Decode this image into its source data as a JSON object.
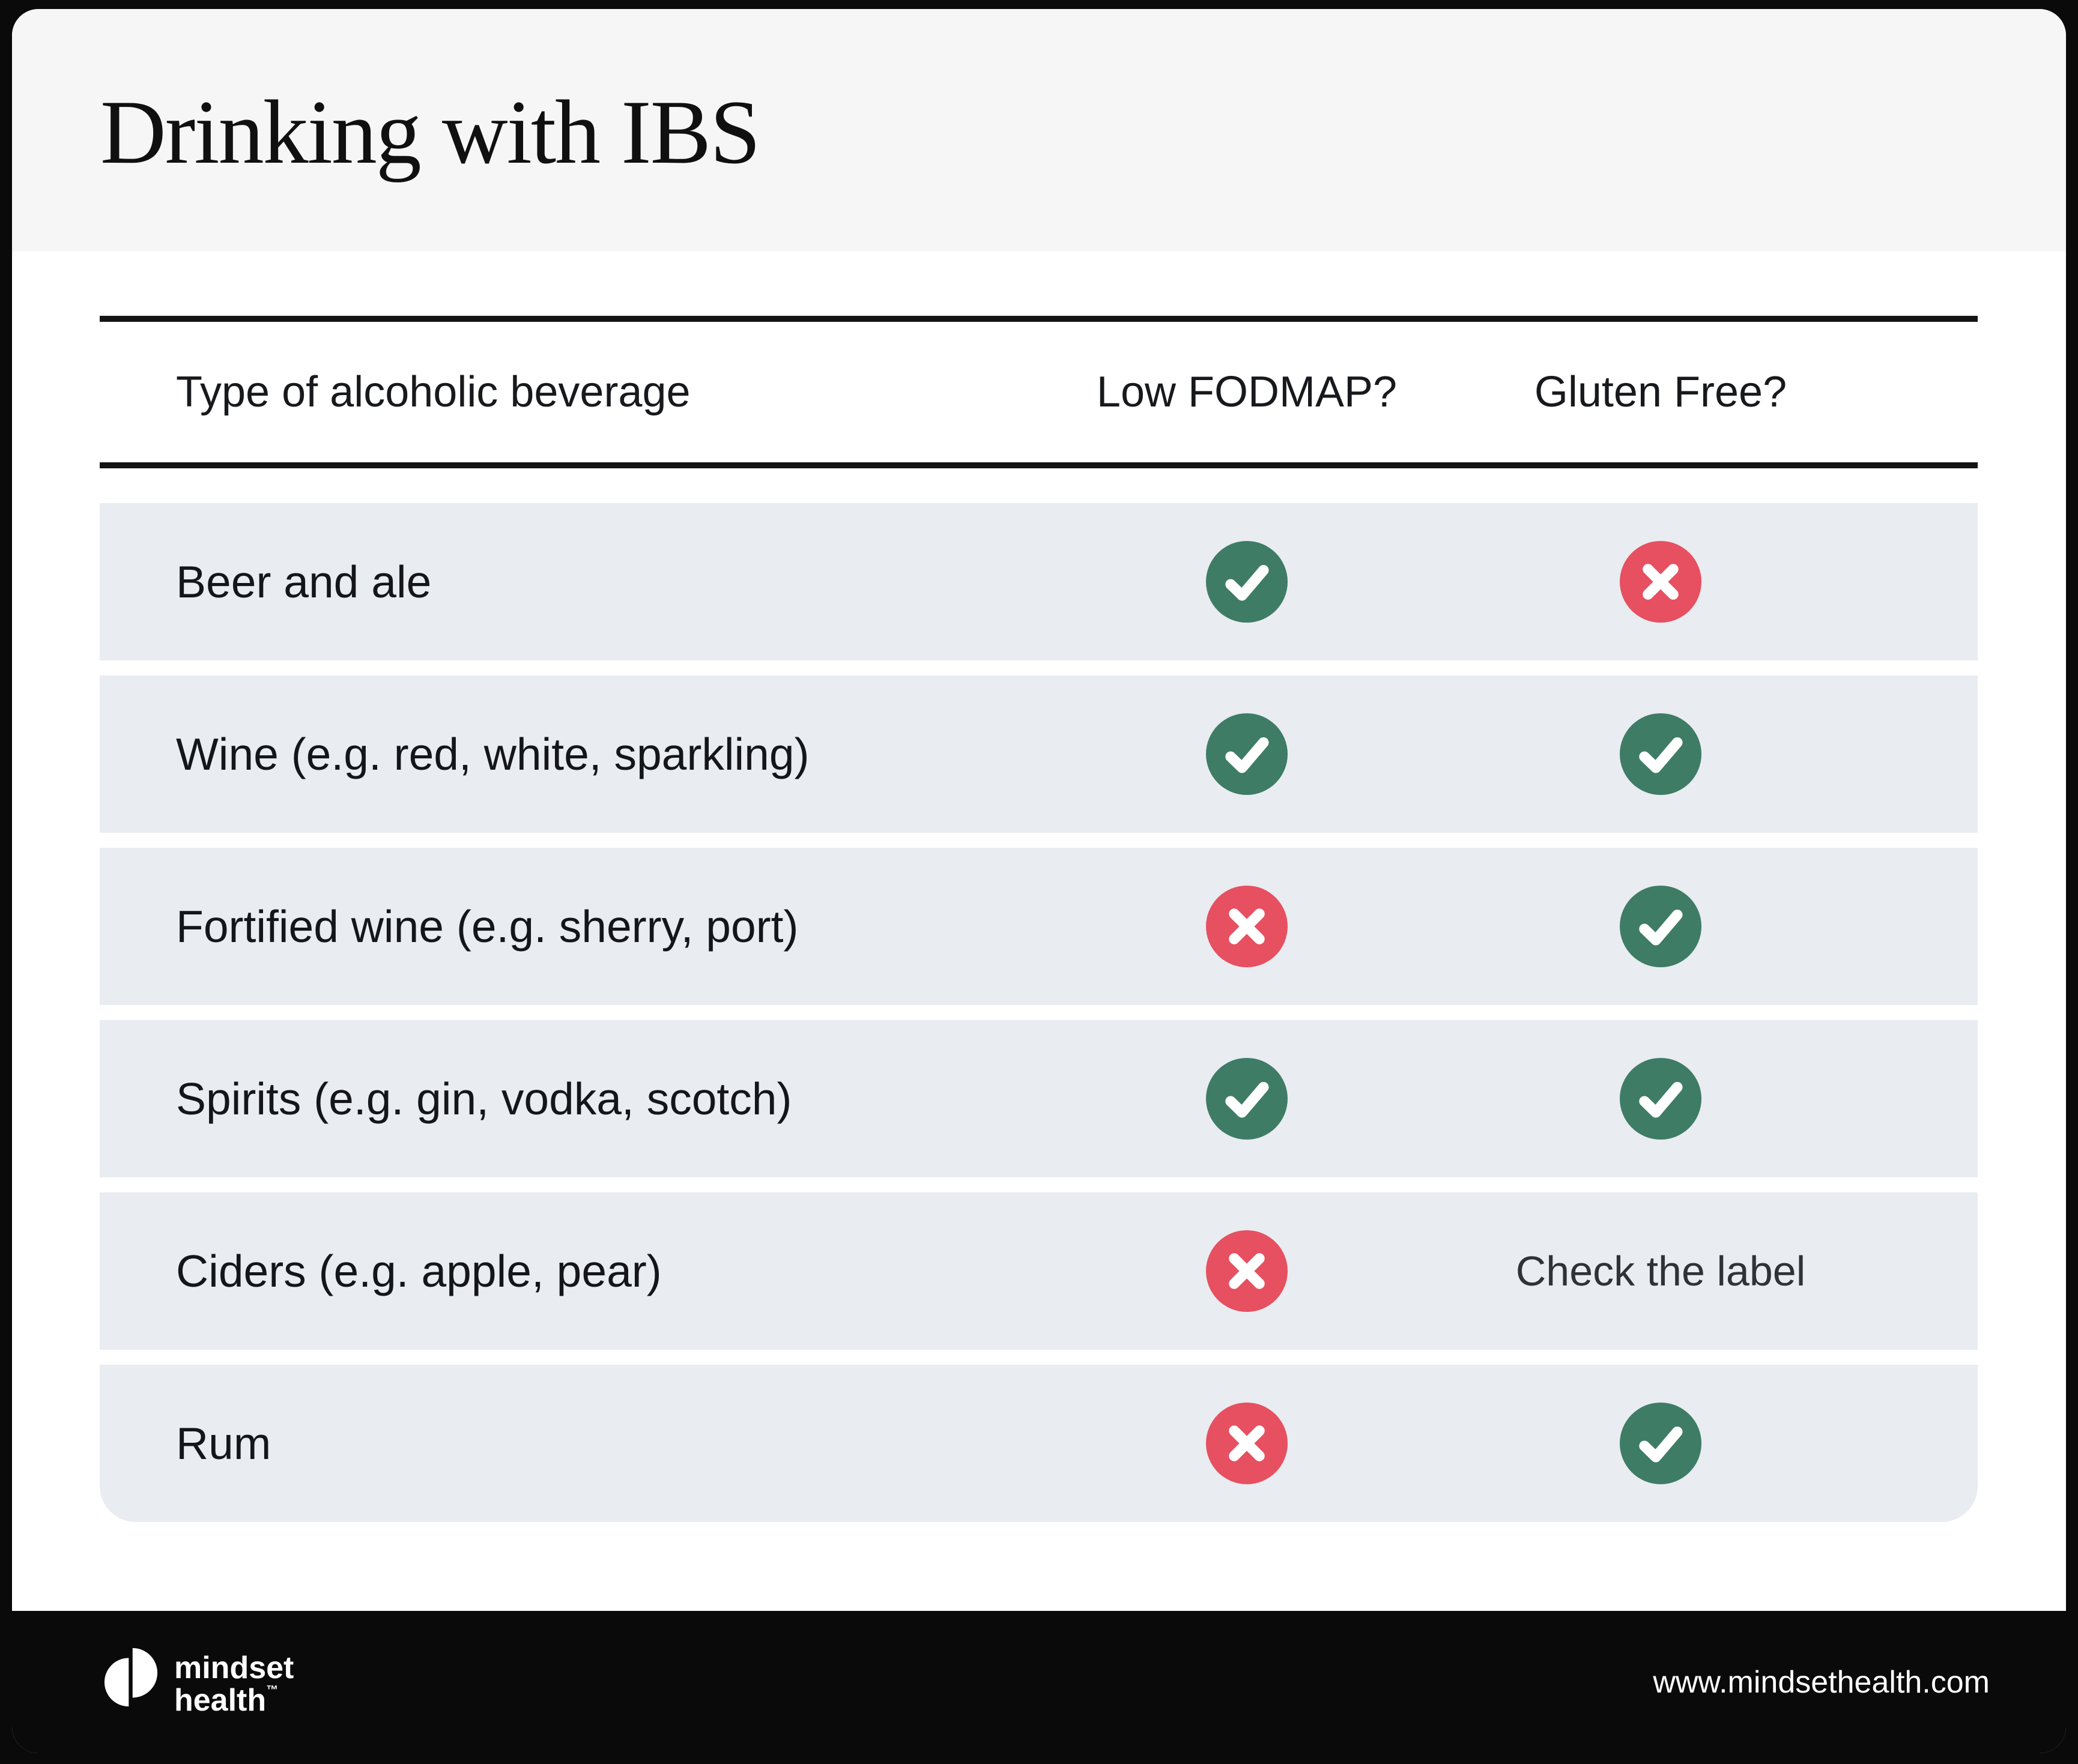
{
  "page": {
    "title": "Drinking with IBS"
  },
  "table": {
    "headers": {
      "beverage": "Type of alcoholic beverage",
      "low_fodmap": "Low FODMAP?",
      "gluten_free": "Gluten Free?"
    },
    "rows": [
      {
        "beverage": "Beer and ale",
        "low_fodmap": "check",
        "gluten_free": "cross"
      },
      {
        "beverage": "Wine (e.g. red, white, sparkling)",
        "low_fodmap": "check",
        "gluten_free": "check"
      },
      {
        "beverage": "Fortified wine (e.g. sherry, port)",
        "low_fodmap": "cross",
        "gluten_free": "check"
      },
      {
        "beverage": "Spirits (e.g. gin, vodka, scotch)",
        "low_fodmap": "check",
        "gluten_free": "check"
      },
      {
        "beverage": "Ciders (e.g. apple, pear)",
        "low_fodmap": "cross",
        "gluten_free": "Check the label"
      },
      {
        "beverage": "Rum",
        "low_fodmap": "cross",
        "gluten_free": "check"
      }
    ]
  },
  "footer": {
    "logo_line1": "mindset",
    "logo_line2": "health",
    "trademark_symbol": "™",
    "website": "www.mindsethealth.com"
  },
  "colors": {
    "check_green": "#3E7C65",
    "cross_red": "#E65061",
    "row_background": "#E9ECF1",
    "title_band_background": "#F6F6F6",
    "footer_background": "#0A0A0B"
  }
}
